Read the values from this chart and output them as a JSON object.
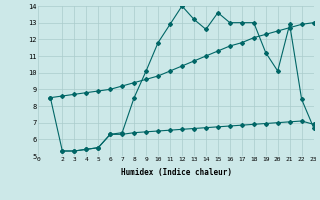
{
  "xlabel": "Humidex (Indice chaleur)",
  "background_color": "#cce8e8",
  "grid_color": "#aacccc",
  "line_color": "#006666",
  "xlim": [
    0,
    23
  ],
  "ylim": [
    5,
    14
  ],
  "xticks": [
    0,
    2,
    3,
    4,
    5,
    6,
    7,
    8,
    9,
    10,
    11,
    12,
    13,
    14,
    15,
    16,
    17,
    18,
    19,
    20,
    21,
    22,
    23
  ],
  "yticks": [
    5,
    6,
    7,
    8,
    9,
    10,
    11,
    12,
    13,
    14
  ],
  "line1_x": [
    1,
    2,
    3,
    4,
    5,
    6,
    7,
    8,
    9,
    10,
    11,
    12,
    13,
    14,
    15,
    16,
    17,
    18,
    19,
    20,
    21,
    22,
    23
  ],
  "line1_y": [
    8.5,
    5.3,
    5.3,
    5.4,
    5.5,
    6.3,
    6.4,
    8.5,
    10.1,
    11.8,
    12.9,
    14.0,
    13.2,
    12.6,
    13.6,
    13.0,
    13.0,
    13.0,
    11.2,
    10.1,
    12.9,
    8.4,
    6.7
  ],
  "line2_x": [
    1,
    2,
    3,
    4,
    5,
    6,
    7,
    8,
    9,
    10,
    11,
    12,
    13,
    14,
    15,
    16,
    17,
    18,
    19,
    20,
    21,
    22,
    23
  ],
  "line2_y": [
    8.5,
    8.6,
    8.7,
    8.8,
    8.9,
    9.0,
    9.2,
    9.4,
    9.6,
    9.8,
    10.1,
    10.4,
    10.7,
    11.0,
    11.3,
    11.6,
    11.8,
    12.1,
    12.3,
    12.5,
    12.7,
    12.9,
    13.0
  ],
  "line3_x": [
    2,
    3,
    4,
    5,
    6,
    7,
    8,
    9,
    10,
    11,
    12,
    13,
    14,
    15,
    16,
    17,
    18,
    19,
    20,
    21,
    22,
    23
  ],
  "line3_y": [
    5.3,
    5.3,
    5.4,
    5.5,
    6.3,
    6.3,
    6.4,
    6.45,
    6.5,
    6.55,
    6.6,
    6.65,
    6.7,
    6.75,
    6.8,
    6.85,
    6.9,
    6.95,
    7.0,
    7.05,
    7.1,
    6.9
  ]
}
